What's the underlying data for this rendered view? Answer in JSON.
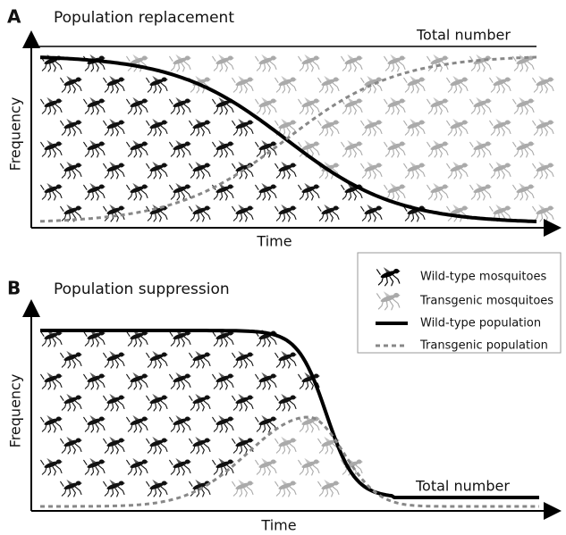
{
  "panel_a": {
    "label": "A",
    "title": "Population replacement",
    "y_axis_label": "Frequency",
    "x_axis_label": "Time",
    "total_label": "Total number"
  },
  "panel_b": {
    "label": "B",
    "title": "Population suppression",
    "y_axis_label": "Frequency",
    "x_axis_label": "Time",
    "total_label": "Total number"
  },
  "legend": {
    "items": [
      "Wild-type mosquitoes",
      "Transgenic mosquitoes",
      "Wild-type population",
      "Transgenic population"
    ]
  }
}
